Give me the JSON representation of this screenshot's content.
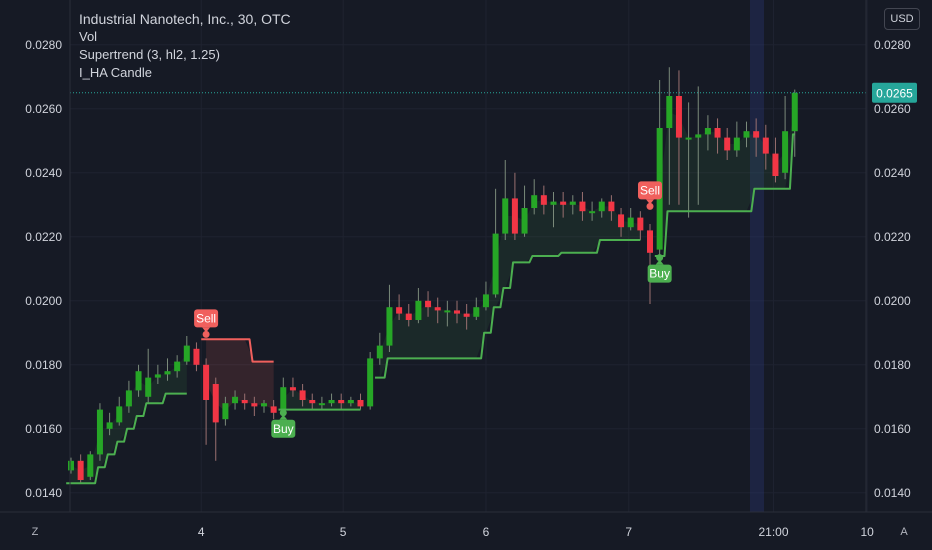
{
  "legend": {
    "title": "Industrial Nanotech, Inc., 30, OTC",
    "vol": "Vol",
    "supertrend": "Supertrend (3, hl2, 1.25)",
    "ha": "I_HA Candle"
  },
  "currency": "USD",
  "buttons": {
    "zoom": "Z",
    "auto": "A"
  },
  "colors": {
    "up": "#26a626",
    "down": "#f23645",
    "st_up": "#4caf50",
    "st_down": "#f0605d",
    "price": "#26a69a",
    "bg": "#161a25",
    "text": "#d1d4dc"
  },
  "chart_data": {
    "type": "candlestick",
    "ylim": [
      0.0134,
      0.0294
    ],
    "left_ticks": [
      "0.0280",
      "0.0260",
      "0.0240",
      "0.0220",
      "0.0200",
      "0.0180",
      "0.0160",
      "0.0140"
    ],
    "right_ticks": [
      "0.0280",
      "0.0260",
      "0.0240",
      "0.0220",
      "0.0200",
      "0.0180",
      "0.0160",
      "0.0140"
    ],
    "tick_values": [
      0.028,
      0.026,
      0.024,
      0.022,
      0.02,
      0.018,
      0.016,
      0.014
    ],
    "x_labels": [
      {
        "label": "4",
        "index": 13.5
      },
      {
        "label": "5",
        "index": 28.2
      },
      {
        "label": "6",
        "index": 43.0
      },
      {
        "label": "7",
        "index": 57.8
      },
      {
        "label": "21:00",
        "index": 72.8
      },
      {
        "label": "10",
        "index": 82.5
      }
    ],
    "current_price": 0.0265,
    "current_price_label": "0.0265",
    "candles": [
      [
        0.0147,
        0.015,
        0.0151,
        0.0146
      ],
      [
        0.015,
        0.0144,
        0.0152,
        0.0143
      ],
      [
        0.0145,
        0.0152,
        0.0153,
        0.0144
      ],
      [
        0.0152,
        0.0166,
        0.0168,
        0.015
      ],
      [
        0.016,
        0.0162,
        0.0165,
        0.0158
      ],
      [
        0.0162,
        0.0167,
        0.017,
        0.0161
      ],
      [
        0.0167,
        0.0172,
        0.0175,
        0.0165
      ],
      [
        0.0172,
        0.0178,
        0.018,
        0.017
      ],
      [
        0.017,
        0.0176,
        0.0185,
        0.0168
      ],
      [
        0.0176,
        0.0177,
        0.018,
        0.0174
      ],
      [
        0.0177,
        0.0178,
        0.0182,
        0.0175
      ],
      [
        0.0178,
        0.0181,
        0.0183,
        0.0176
      ],
      [
        0.0181,
        0.0186,
        0.0189,
        0.018
      ],
      [
        0.0185,
        0.018,
        0.0187,
        0.0178
      ],
      [
        0.018,
        0.0169,
        0.0182,
        0.0155
      ],
      [
        0.0174,
        0.0162,
        0.0176,
        0.015
      ],
      [
        0.0163,
        0.0168,
        0.017,
        0.0161
      ],
      [
        0.0168,
        0.017,
        0.0172,
        0.0166
      ],
      [
        0.0169,
        0.0168,
        0.0171,
        0.0166
      ],
      [
        0.0168,
        0.0167,
        0.017,
        0.0164
      ],
      [
        0.0167,
        0.0168,
        0.0169,
        0.0165
      ],
      [
        0.0167,
        0.0165,
        0.0169,
        0.0163
      ],
      [
        0.0166,
        0.0173,
        0.0176,
        0.0165
      ],
      [
        0.0173,
        0.0172,
        0.0176,
        0.017
      ],
      [
        0.0172,
        0.0169,
        0.0174,
        0.0167
      ],
      [
        0.0169,
        0.0168,
        0.0171,
        0.0166
      ],
      [
        0.0168,
        0.0168,
        0.017,
        0.0166
      ],
      [
        0.0168,
        0.0169,
        0.0171,
        0.0167
      ],
      [
        0.0169,
        0.0168,
        0.0171,
        0.0166
      ],
      [
        0.0168,
        0.0169,
        0.017,
        0.0167
      ],
      [
        0.0169,
        0.0167,
        0.0171,
        0.0166
      ],
      [
        0.0167,
        0.0182,
        0.0184,
        0.0166
      ],
      [
        0.0182,
        0.0186,
        0.019,
        0.018
      ],
      [
        0.0186,
        0.0198,
        0.0205,
        0.0184
      ],
      [
        0.0198,
        0.0196,
        0.0202,
        0.0194
      ],
      [
        0.0196,
        0.0194,
        0.0199,
        0.0192
      ],
      [
        0.0194,
        0.02,
        0.0204,
        0.0193
      ],
      [
        0.02,
        0.0198,
        0.0203,
        0.0195
      ],
      [
        0.0198,
        0.0197,
        0.0201,
        0.0193
      ],
      [
        0.0197,
        0.0197,
        0.02,
        0.0192
      ],
      [
        0.0197,
        0.0196,
        0.02,
        0.0193
      ],
      [
        0.0196,
        0.0195,
        0.0199,
        0.0191
      ],
      [
        0.0195,
        0.0198,
        0.0201,
        0.0194
      ],
      [
        0.0198,
        0.0202,
        0.0206,
        0.0197
      ],
      [
        0.0202,
        0.0221,
        0.0235,
        0.0201
      ],
      [
        0.0221,
        0.0232,
        0.0244,
        0.0219
      ],
      [
        0.0232,
        0.0221,
        0.024,
        0.0219
      ],
      [
        0.0221,
        0.0229,
        0.0236,
        0.022
      ],
      [
        0.0229,
        0.0233,
        0.0238,
        0.0227
      ],
      [
        0.0233,
        0.023,
        0.0236,
        0.0227
      ],
      [
        0.023,
        0.0231,
        0.0234,
        0.0223
      ],
      [
        0.0231,
        0.023,
        0.0234,
        0.0226
      ],
      [
        0.023,
        0.0231,
        0.0233,
        0.0227
      ],
      [
        0.0231,
        0.0228,
        0.0234,
        0.0225
      ],
      [
        0.0228,
        0.0228,
        0.0231,
        0.0225
      ],
      [
        0.0228,
        0.0231,
        0.0232,
        0.0226
      ],
      [
        0.0231,
        0.0228,
        0.0233,
        0.0225
      ],
      [
        0.0227,
        0.0223,
        0.0229,
        0.022
      ],
      [
        0.0223,
        0.0226,
        0.0229,
        0.0222
      ],
      [
        0.0226,
        0.0222,
        0.0228,
        0.0219
      ],
      [
        0.0222,
        0.0215,
        0.0224,
        0.0199
      ],
      [
        0.0216,
        0.0254,
        0.0269,
        0.0214
      ],
      [
        0.0254,
        0.0264,
        0.0273,
        0.023
      ],
      [
        0.0264,
        0.0251,
        0.0272,
        0.023
      ],
      [
        0.0251,
        0.0251,
        0.0262,
        0.0226
      ],
      [
        0.0251,
        0.0252,
        0.0267,
        0.023
      ],
      [
        0.0252,
        0.0254,
        0.0258,
        0.0247
      ],
      [
        0.0254,
        0.0251,
        0.0257,
        0.0246
      ],
      [
        0.0251,
        0.0247,
        0.0254,
        0.0244
      ],
      [
        0.0247,
        0.0251,
        0.0256,
        0.0245
      ],
      [
        0.0251,
        0.0253,
        0.0256,
        0.0248
      ],
      [
        0.0253,
        0.0251,
        0.0257,
        0.0245
      ],
      [
        0.0251,
        0.0246,
        0.0255,
        0.0241
      ],
      [
        0.0246,
        0.0239,
        0.0251,
        0.0237
      ],
      [
        0.024,
        0.0253,
        0.0264,
        0.0238
      ],
      [
        0.0253,
        0.0265,
        0.0266,
        0.0245
      ]
    ],
    "supertrend": [
      0.0143,
      0.0143,
      0.0143,
      0.0148,
      0.0152,
      0.0156,
      0.016,
      0.0164,
      0.0168,
      0.0168,
      0.0171,
      0.0171,
      0.0171,
      null,
      0.0188,
      0.0188,
      0.0188,
      0.0188,
      0.0188,
      0.0181,
      0.0181,
      0.0181,
      0.0166,
      0.0166,
      0.0166,
      0.0166,
      0.0166,
      0.0166,
      0.0166,
      0.0166,
      0.0166,
      0.0176,
      0.0176,
      0.0182,
      0.0182,
      0.0182,
      0.0182,
      0.0182,
      0.0182,
      0.0182,
      0.0182,
      0.0182,
      0.0182,
      0.019,
      0.0198,
      0.0204,
      0.0212,
      0.0212,
      0.0214,
      0.0214,
      0.0214,
      0.0215,
      0.0215,
      0.0215,
      0.0215,
      0.0219,
      0.0219,
      0.0219,
      0.0219,
      0.0219,
      0.0219,
      0.0214,
      0.0228,
      0.0228,
      0.0228,
      0.0228,
      0.0228,
      0.0228,
      0.0228,
      0.0228,
      0.0228,
      0.0235,
      0.0235,
      0.0235,
      0.0235,
      0.0252
    ],
    "signals": [
      {
        "type": "Sell",
        "index": 14,
        "price": 0.01895
      },
      {
        "type": "Buy",
        "index": 22,
        "price": 0.0165
      },
      {
        "type": "Sell",
        "index": 60,
        "price": 0.02295
      },
      {
        "type": "Buy",
        "index": 61,
        "price": 0.02135
      }
    ]
  }
}
